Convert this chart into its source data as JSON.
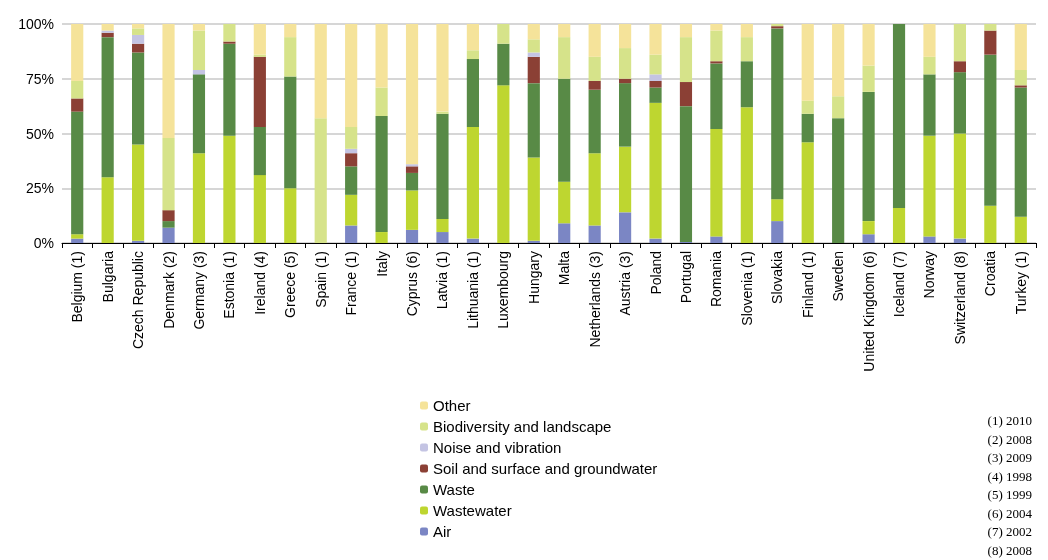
{
  "chart_data": {
    "type": "bar",
    "stacked": true,
    "grid": "y",
    "legend": "bottom",
    "categories": [
      "Belgium (1)",
      "Bulgaria",
      "Czech Republic",
      "Denmark (2)",
      "Germany (3)",
      "Estonia (1)",
      "Ireland (4)",
      "Greece (5)",
      "Spain (1)",
      "France (1)",
      "Italy",
      "Cyprus (6)",
      "Latvia (1)",
      "Lithuania (1)",
      "Luxembourg",
      "Hungary",
      "Malta",
      "Netherlands (3)",
      "Austria (3)",
      "Poland",
      "Portugal",
      "Romania",
      "Slovenia (1)",
      "Slovakia",
      "Finland (1)",
      "Sweden",
      "United Kingdom (6)",
      "Iceland (7)",
      "Norway",
      "Switzerland (8)",
      "Croatia",
      "Turkey (1)"
    ],
    "ylim": [
      0,
      100
    ],
    "yticks": [
      {
        "value": 0,
        "label": "0%"
      },
      {
        "value": 25,
        "label": "25%"
      },
      {
        "value": 50,
        "label": "50%"
      },
      {
        "value": 75,
        "label": "75%"
      },
      {
        "value": 100,
        "label": "100%"
      }
    ],
    "series": [
      {
        "name": "Air",
        "color": "#7b86c4",
        "values": [
          2,
          0,
          1,
          7,
          0,
          0,
          0,
          0,
          0,
          8,
          0,
          6,
          5,
          2,
          0,
          1,
          9,
          8,
          14,
          2,
          0.5,
          3,
          0,
          10,
          0,
          0,
          4,
          0,
          3,
          2,
          0,
          0
        ]
      },
      {
        "name": "Wastewater",
        "color": "#bed630",
        "values": [
          2,
          30,
          44,
          0,
          41,
          49,
          31,
          25,
          0,
          14,
          5,
          18,
          6,
          51,
          72,
          38,
          19,
          33,
          30,
          62,
          0,
          49,
          62,
          10,
          46,
          0,
          6,
          16,
          46,
          48,
          17,
          12
        ]
      },
      {
        "name": "Waste",
        "color": "#588a46",
        "values": [
          56,
          64,
          42,
          3,
          36,
          42,
          22,
          51,
          0,
          13,
          53,
          8,
          48,
          31,
          19,
          34,
          47,
          29,
          29,
          7,
          62,
          30,
          21,
          78,
          13,
          57,
          59,
          84,
          28,
          28,
          69,
          59
        ]
      },
      {
        "name": "Soil and surface and groundwater",
        "color": "#8b4035",
        "values": [
          6,
          2,
          4,
          5,
          0,
          1,
          32,
          0,
          0,
          6,
          0,
          3,
          0,
          0,
          0,
          12,
          0,
          4,
          2,
          3,
          11,
          1,
          0,
          1,
          0,
          0,
          0,
          0,
          0,
          5,
          11,
          1
        ]
      },
      {
        "name": "Noise and vibration",
        "color": "#c4c4e3",
        "values": [
          0,
          1,
          4,
          0,
          2,
          0,
          0,
          0,
          0,
          2,
          0,
          1,
          0,
          0,
          0,
          2,
          0,
          0,
          0,
          3,
          0,
          0,
          0,
          0,
          0,
          0,
          0,
          0,
          0,
          0,
          0,
          0
        ]
      },
      {
        "name": "Biodiversity and landscape",
        "color": "#d6e38a",
        "values": [
          8,
          0,
          3,
          33,
          18,
          8,
          1,
          18,
          57,
          10,
          13,
          0,
          1,
          4,
          9,
          6,
          19,
          11,
          14,
          9,
          20.5,
          14,
          11,
          1,
          6,
          10,
          12,
          0,
          8,
          17,
          3,
          7
        ]
      },
      {
        "name": "Other",
        "color": "#f5e39a",
        "values": [
          26,
          3,
          2,
          52,
          3,
          0,
          14,
          6,
          43,
          47,
          29,
          64,
          40,
          12,
          0,
          7,
          6,
          15,
          11,
          14,
          6,
          3,
          6,
          0,
          35,
          33,
          19,
          0,
          15,
          0,
          0,
          21
        ]
      }
    ],
    "annotations": [
      "(1) 2010",
      "(2) 2008",
      "(3) 2009",
      "(4) 1998",
      "(5) 1999",
      "(6) 2004",
      "(7) 2002",
      "(8) 2008"
    ]
  }
}
